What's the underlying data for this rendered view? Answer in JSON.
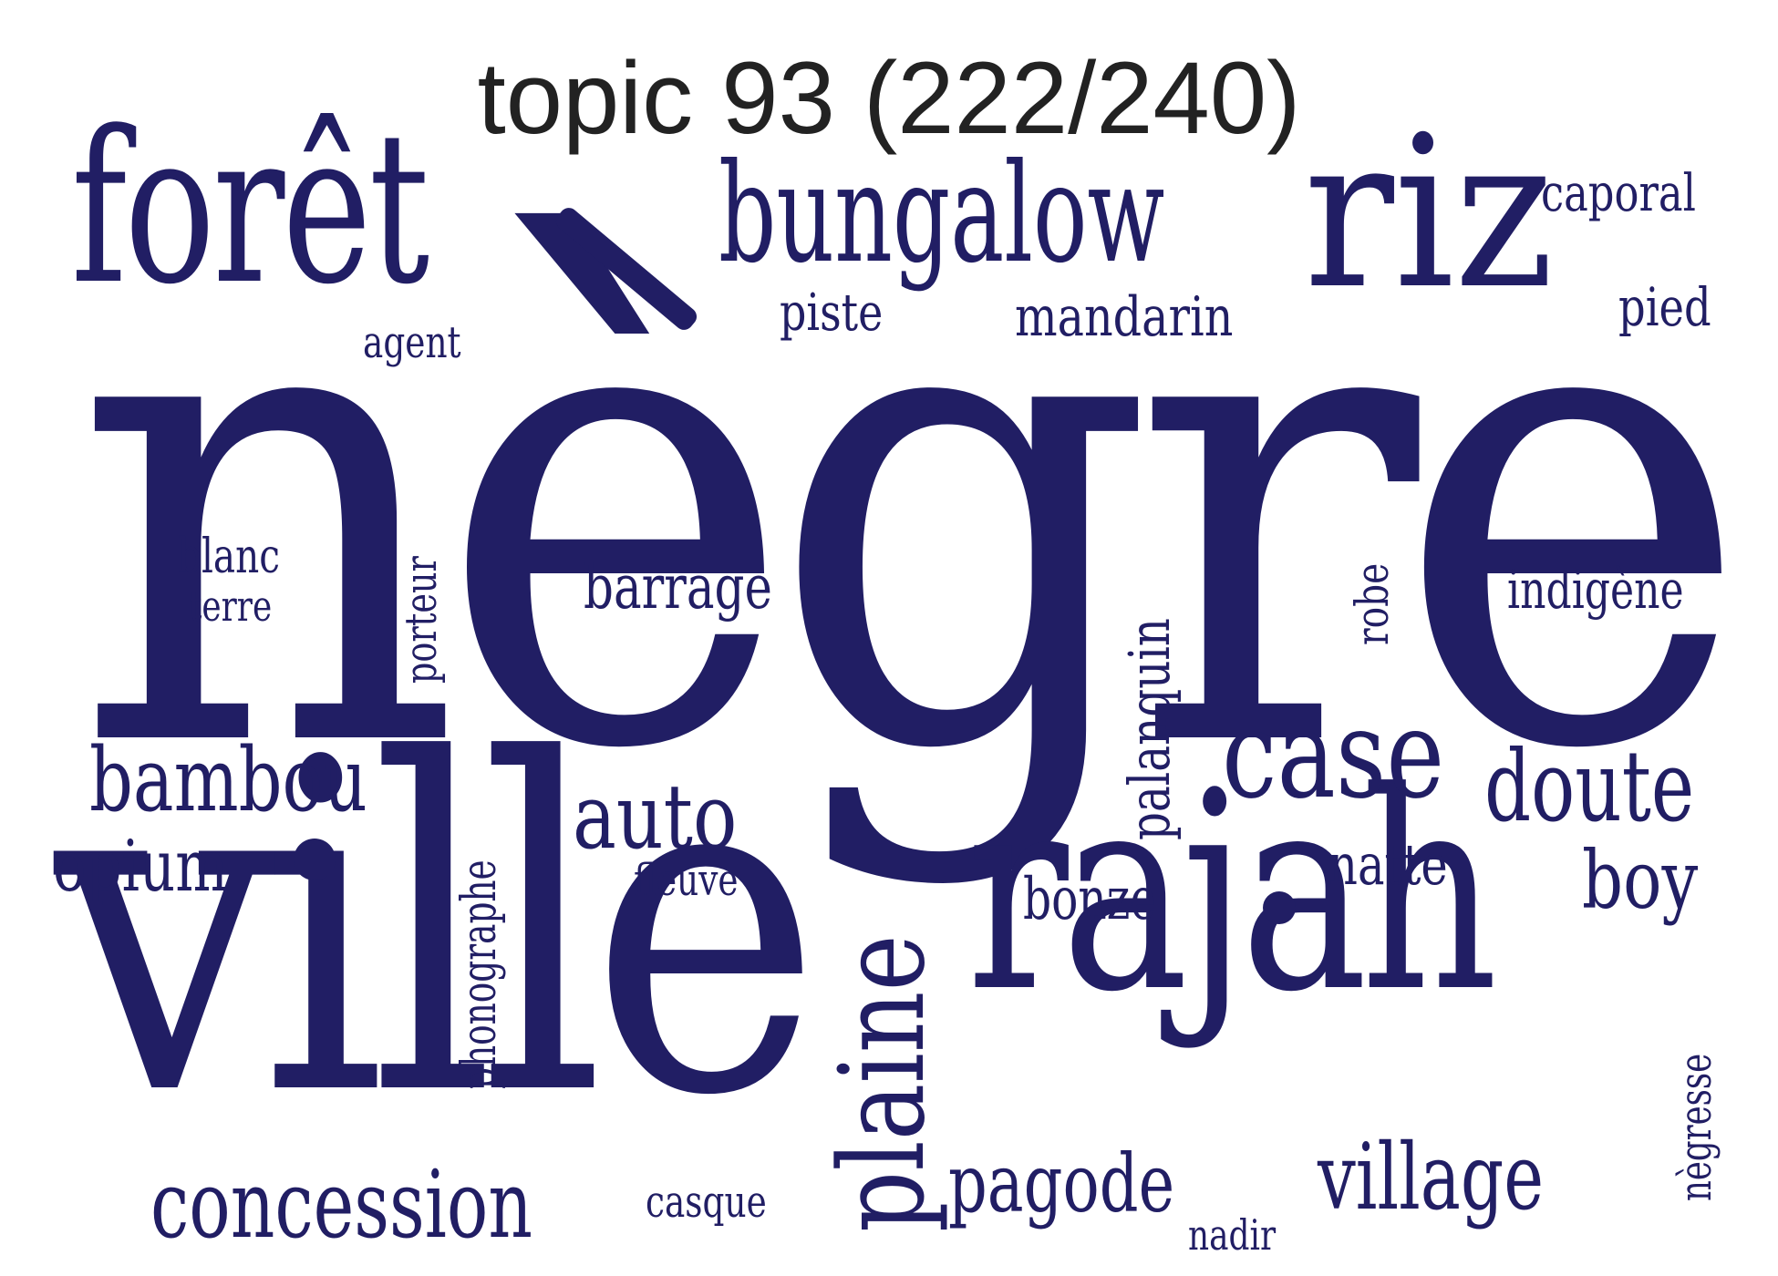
{
  "title": "topic 93 (222/240)",
  "colors": {
    "word": "#211e64",
    "title": "#222222",
    "background": "#ffffff"
  },
  "words": [
    "nègre",
    "ville",
    "rajah",
    "forêt",
    "riz",
    "bungalow",
    "case",
    "plaine",
    "doute",
    "village",
    "concession",
    "bambou",
    "auto",
    "pagode",
    "opium",
    "boy",
    "barrage",
    "palanquin",
    "bonze",
    "natte",
    "indigène",
    "phonographe",
    "mandarin",
    "caporal",
    "pied",
    "piste",
    "blanc",
    "porteur",
    "robe",
    "nègresse",
    "casque",
    "fleuve",
    "terre",
    "agent",
    "nadir"
  ]
}
